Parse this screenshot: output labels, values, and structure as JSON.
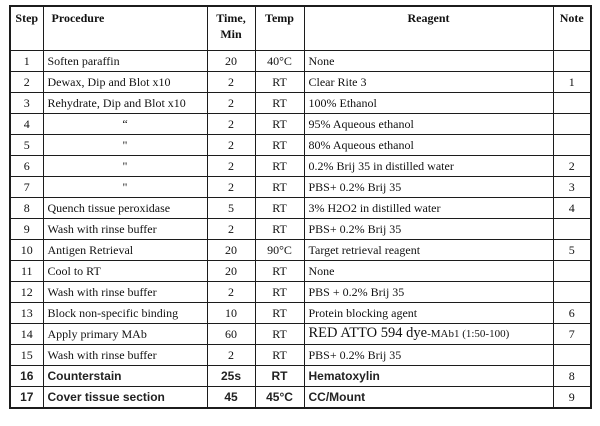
{
  "table": {
    "headers": {
      "step": "Step",
      "procedure": "Procedure",
      "time_line1": "Time,",
      "time_line2": "Min",
      "temp": "Temp",
      "reagent": "Reagent",
      "note": "Note"
    },
    "rows": [
      {
        "step": "1",
        "procedure": "Soften paraffin",
        "time": "20",
        "temp": "40°C",
        "reagent": "None",
        "note": ""
      },
      {
        "step": "2",
        "procedure": "Dewax, Dip and Blot x10",
        "time": "2",
        "temp": "RT",
        "reagent": "Clear Rite 3",
        "note": "1"
      },
      {
        "step": "3",
        "procedure": "Rehydrate, Dip and Blot x10",
        "time": "2",
        "temp": "RT",
        "reagent": "100% Ethanol",
        "note": ""
      },
      {
        "step": "4",
        "procedure": "“",
        "procedure_align": "center",
        "time": "2",
        "temp": "RT",
        "reagent": "95% Aqueous ethanol",
        "note": ""
      },
      {
        "step": "5",
        "procedure": "\"",
        "procedure_align": "center",
        "time": "2",
        "temp": "RT",
        "reagent": "80% Aqueous ethanol",
        "note": ""
      },
      {
        "step": "6",
        "procedure": "\"",
        "procedure_align": "center",
        "time": "2",
        "temp": "RT",
        "reagent": "0.2% Brij 35 in distilled water",
        "note": "2"
      },
      {
        "step": "7",
        "procedure": "\"",
        "procedure_align": "center",
        "time": "2",
        "temp": "RT",
        "reagent": "PBS+ 0.2% Brij 35",
        "note": "3"
      },
      {
        "step": "8",
        "procedure": "Quench tissue peroxidase",
        "time": "5",
        "temp": "RT",
        "reagent": "3% H2O2 in distilled water",
        "note": "4"
      },
      {
        "step": "9",
        "procedure": "Wash with rinse buffer",
        "time": "2",
        "temp": "RT",
        "reagent": "PBS+ 0.2% Brij 35",
        "note": ""
      },
      {
        "step": "10",
        "procedure": "Antigen Retrieval",
        "time": "20",
        "temp": "90°C",
        "reagent": "Target retrieval reagent",
        "note": "5"
      },
      {
        "step": "11",
        "procedure": "Cool to RT",
        "time": "20",
        "temp": "RT",
        "reagent": "None",
        "note": ""
      },
      {
        "step": "12",
        "procedure": "Wash with rinse buffer",
        "time": "2",
        "temp": "RT",
        "reagent": "PBS + 0.2% Brij 35",
        "note": ""
      },
      {
        "step": "13",
        "procedure": "Block non-specific binding",
        "time": "10",
        "temp": "RT",
        "reagent": "Protein blocking agent",
        "note": "6"
      },
      {
        "step": "14",
        "procedure": "Apply primary MAb",
        "time": "60",
        "temp": "RT",
        "reagent": "RED ATTO 594 dye-MAb1 (1:50-100)",
        "reagent_parts": {
          "main": "RED ATTO 594 dye",
          "small": "-MAb1 (1:50-100)"
        },
        "note": "7"
      },
      {
        "step": "15",
        "procedure": "Wash with rinse buffer",
        "time": "2",
        "temp": "RT",
        "reagent": "PBS+ 0.2% Brij 35",
        "note": ""
      },
      {
        "step": "16",
        "procedure": "Counterstain",
        "time": "25s",
        "temp": "RT",
        "reagent": "Hematoxylin",
        "note": "8",
        "font": "sans"
      },
      {
        "step": "17",
        "procedure": "Cover tissue section",
        "time": "45",
        "temp": "45°C",
        "reagent": "CC/Mount",
        "note": "9",
        "font": "sans"
      }
    ]
  }
}
